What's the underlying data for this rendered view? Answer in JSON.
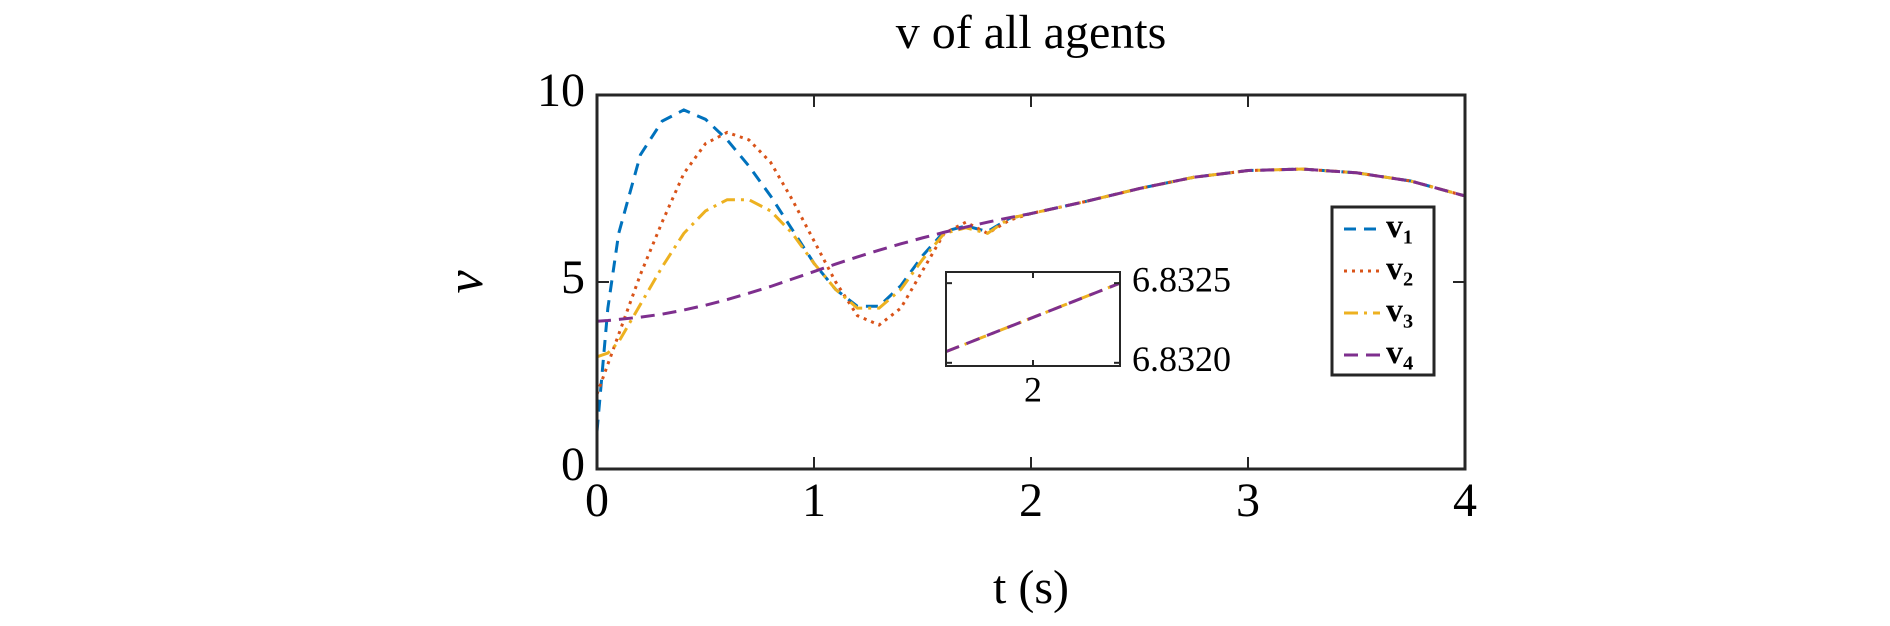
{
  "chart_data": [
    {
      "type": "line",
      "title": "v of all agents",
      "xlabel": "t (s)",
      "ylabel": "v",
      "x": [
        0,
        0.05,
        0.1,
        0.2,
        0.3,
        0.4,
        0.5,
        0.6,
        0.7,
        0.8,
        0.9,
        1.0,
        1.1,
        1.2,
        1.3,
        1.4,
        1.5,
        1.6,
        1.7,
        1.8,
        1.9,
        2.0,
        2.25,
        2.5,
        2.75,
        3.0,
        3.25,
        3.5,
        3.75,
        4.0
      ],
      "series": [
        {
          "name": "v₁",
          "color": "#0072BD",
          "dash": "12,8",
          "values": [
            1.0,
            4.3,
            6.3,
            8.4,
            9.3,
            9.6,
            9.35,
            8.8,
            8.1,
            7.3,
            6.4,
            5.5,
            4.8,
            4.35,
            4.35,
            4.9,
            5.7,
            6.35,
            6.5,
            6.35,
            6.7,
            6.83,
            7.15,
            7.5,
            7.8,
            7.98,
            8.02,
            7.92,
            7.7,
            7.3
          ]
        },
        {
          "name": "v₂",
          "color": "#D95319",
          "dash": "3,5",
          "values": [
            2.0,
            2.8,
            3.6,
            5.2,
            6.6,
            7.9,
            8.7,
            9.0,
            8.8,
            8.2,
            7.2,
            6.1,
            5.0,
            4.1,
            3.85,
            4.3,
            5.3,
            6.3,
            6.6,
            6.3,
            6.65,
            6.83,
            7.15,
            7.5,
            7.8,
            7.98,
            8.02,
            7.92,
            7.7,
            7.3
          ]
        },
        {
          "name": "v₃",
          "color": "#EDB120",
          "dash": "14,6,3,6",
          "values": [
            3.0,
            3.1,
            3.4,
            4.4,
            5.4,
            6.3,
            6.9,
            7.2,
            7.2,
            6.9,
            6.3,
            5.5,
            4.8,
            4.3,
            4.3,
            4.8,
            5.6,
            6.3,
            6.45,
            6.3,
            6.7,
            6.83,
            7.15,
            7.5,
            7.8,
            7.98,
            8.02,
            7.92,
            7.7,
            7.3
          ]
        },
        {
          "name": "v₄",
          "color": "#7E2F8E",
          "dash": "14,8",
          "values": [
            3.95,
            3.97,
            4.0,
            4.06,
            4.14,
            4.25,
            4.38,
            4.53,
            4.7,
            4.88,
            5.08,
            5.28,
            5.48,
            5.67,
            5.85,
            6.02,
            6.18,
            6.33,
            6.47,
            6.6,
            6.72,
            6.83,
            7.15,
            7.5,
            7.8,
            7.98,
            8.02,
            7.92,
            7.7,
            7.3
          ]
        }
      ],
      "xlim": [
        0,
        4
      ],
      "xticks": [
        0,
        1,
        2,
        3,
        4
      ],
      "ylim": [
        0,
        10
      ],
      "yticks": [
        0,
        5,
        10
      ],
      "legend": "right"
    },
    {
      "type": "line",
      "x": [
        1.996,
        2.004
      ],
      "series": [
        {
          "color": "#EDB120",
          "dash": "14,6,3,6",
          "values": [
            6.83207,
            6.8325
          ]
        },
        {
          "color": "#7E2F8E",
          "dash": "14,8",
          "values": [
            6.83207,
            6.8325
          ]
        }
      ],
      "xlim": [
        1.996,
        2.004
      ],
      "xticks": [
        2
      ],
      "ylim": [
        6.83198,
        6.83257
      ],
      "yticks": [
        {
          "value": 6.832,
          "label": "6.8320"
        },
        {
          "value": 6.8325,
          "label": "6.8325"
        }
      ]
    }
  ]
}
